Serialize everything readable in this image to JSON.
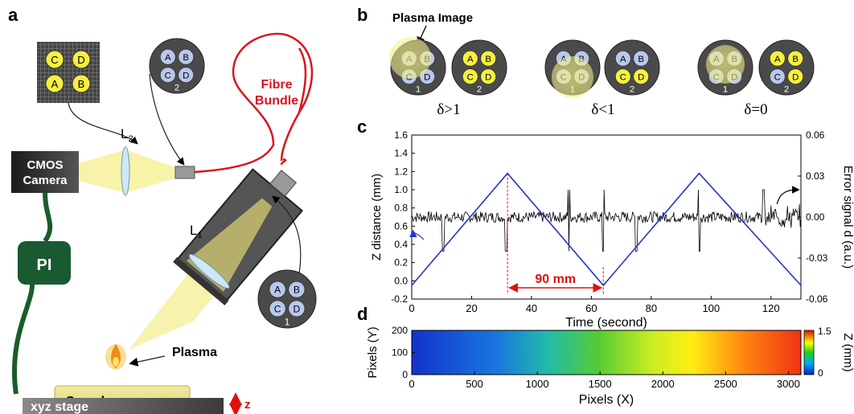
{
  "panels": {
    "a": "a",
    "b": "b",
    "c": "c",
    "d": "d"
  },
  "setup": {
    "fibre_l1": "Fibre",
    "fibre_l2": "Bundle",
    "cmos_l1": "CMOS",
    "cmos_l2": "Camera",
    "pi": "PI",
    "plasma": "Plasma",
    "sample": "Sample",
    "stage": "xyz stage",
    "z": "z",
    "l1": "L",
    "l1_sub": "1",
    "l2": "L",
    "l2_sub": "2",
    "bundle1": {
      "letters": [
        "A",
        "B",
        "C",
        "D"
      ],
      "num": "1"
    },
    "bundle2": {
      "letters": [
        "A",
        "B",
        "C",
        "D"
      ],
      "num": "2"
    },
    "camera_letters": [
      "C",
      "D",
      "A",
      "B"
    ]
  },
  "panel_b": {
    "plasma_image": "Plasma Image",
    "letters": [
      "A",
      "B",
      "C",
      "D"
    ],
    "n1": "1",
    "n2": "2",
    "conditions": [
      "δ>1",
      "δ<1",
      "δ=0"
    ]
  },
  "chart_data": [
    {
      "type": "line",
      "xlabel": "Time (second)",
      "ylabel": "Z distance (mm)",
      "y2label": "Error signal d (a.u.)",
      "xlim": [
        0,
        130
      ],
      "ylim": [
        -0.2,
        1.6
      ],
      "y2lim": [
        -0.06,
        0.06
      ],
      "xticks": [
        "0",
        "20",
        "40",
        "60",
        "80",
        "100",
        "120"
      ],
      "yticks": [
        "-0.2",
        "0.0",
        "0.2",
        "0.4",
        "0.6",
        "0.8",
        "1.0",
        "1.2",
        "1.4",
        "1.6"
      ],
      "y2ticks": [
        "-0.06",
        "-0.03",
        "0.00",
        "0.03",
        "0.06"
      ],
      "annotation": "90 mm",
      "series": [
        {
          "axis": "left",
          "color": "#2233cc",
          "x": [
            0,
            32,
            64,
            96,
            130
          ],
          "values": [
            -0.05,
            1.18,
            -0.05,
            1.18,
            -0.05
          ]
        },
        {
          "axis": "right",
          "color": "#000000",
          "baseline": 0.0
        }
      ]
    },
    {
      "type": "heatmap",
      "xlabel": "Pixels (X)",
      "ylabel": "Pixels (Y)",
      "xlim": [
        0,
        3100
      ],
      "ylim": [
        0,
        200
      ],
      "xticks": [
        "0",
        "500",
        "1000",
        "1500",
        "2000",
        "2500",
        "3000"
      ],
      "yticks": [
        "0",
        "100",
        "200"
      ],
      "colorbar": {
        "label": "Z  (mm)",
        "ticks": [
          "0",
          "1.5"
        ],
        "range": [
          0,
          1.5
        ]
      }
    }
  ]
}
